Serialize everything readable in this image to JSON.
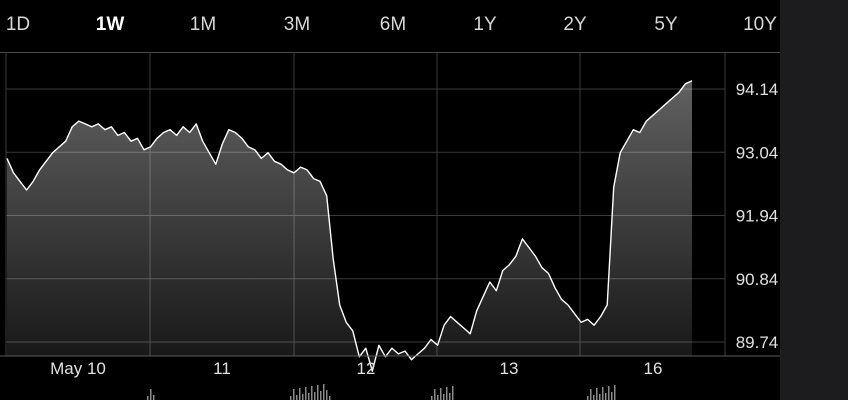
{
  "tabs": {
    "items": [
      "1D",
      "1W",
      "1M",
      "3M",
      "6M",
      "1Y",
      "2Y",
      "5Y",
      "10Y"
    ],
    "active": "1W"
  },
  "colors": {
    "background": "#000000",
    "line": "#ffffff",
    "grid": "#3a3a3a",
    "label": "#e0e0e0"
  },
  "chart_data": {
    "type": "area",
    "title": "",
    "xlabel": "",
    "ylabel": "",
    "grid": true,
    "y_ticks": [
      "94.14",
      "93.04",
      "91.94",
      "90.84",
      "89.74"
    ],
    "ylim": [
      89.74,
      94.14
    ],
    "x_tick_labels": [
      "May 10",
      "11",
      "12",
      "13",
      "16"
    ],
    "volume_bars": true,
    "series": [
      {
        "values": [
          92.95,
          92.7,
          92.55,
          92.4,
          92.55,
          92.75,
          92.9,
          93.05,
          93.15,
          93.25,
          93.5,
          93.6,
          93.55,
          93.5,
          93.55,
          93.45,
          93.5,
          93.35,
          93.4,
          93.25,
          93.3,
          93.1,
          93.15,
          93.3,
          93.4,
          93.45,
          93.35,
          93.5,
          93.4,
          93.55,
          93.25,
          93.05,
          92.85,
          93.2,
          93.45,
          93.4,
          93.3,
          93.15,
          93.1,
          92.95,
          93.05,
          92.9,
          92.85,
          92.75,
          92.7,
          92.8,
          92.75,
          92.6,
          92.55,
          92.3,
          91.2,
          90.4,
          90.1,
          89.95,
          89.5,
          89.65,
          89.25,
          89.7,
          89.5,
          89.65,
          89.55,
          89.6,
          89.45,
          89.55,
          89.65,
          89.8,
          89.7,
          90.05,
          90.2,
          90.1,
          90.0,
          89.9,
          90.3,
          90.55,
          90.8,
          90.65,
          91.0,
          91.1,
          91.25,
          91.55,
          91.4,
          91.25,
          91.05,
          90.95,
          90.7,
          90.5,
          90.4,
          90.25,
          90.1,
          90.15,
          90.05,
          90.2,
          90.4,
          92.45,
          93.05,
          93.25,
          93.45,
          93.4,
          93.6,
          93.7,
          93.8,
          93.9,
          94.0,
          94.1,
          94.25,
          94.3
        ]
      }
    ]
  }
}
